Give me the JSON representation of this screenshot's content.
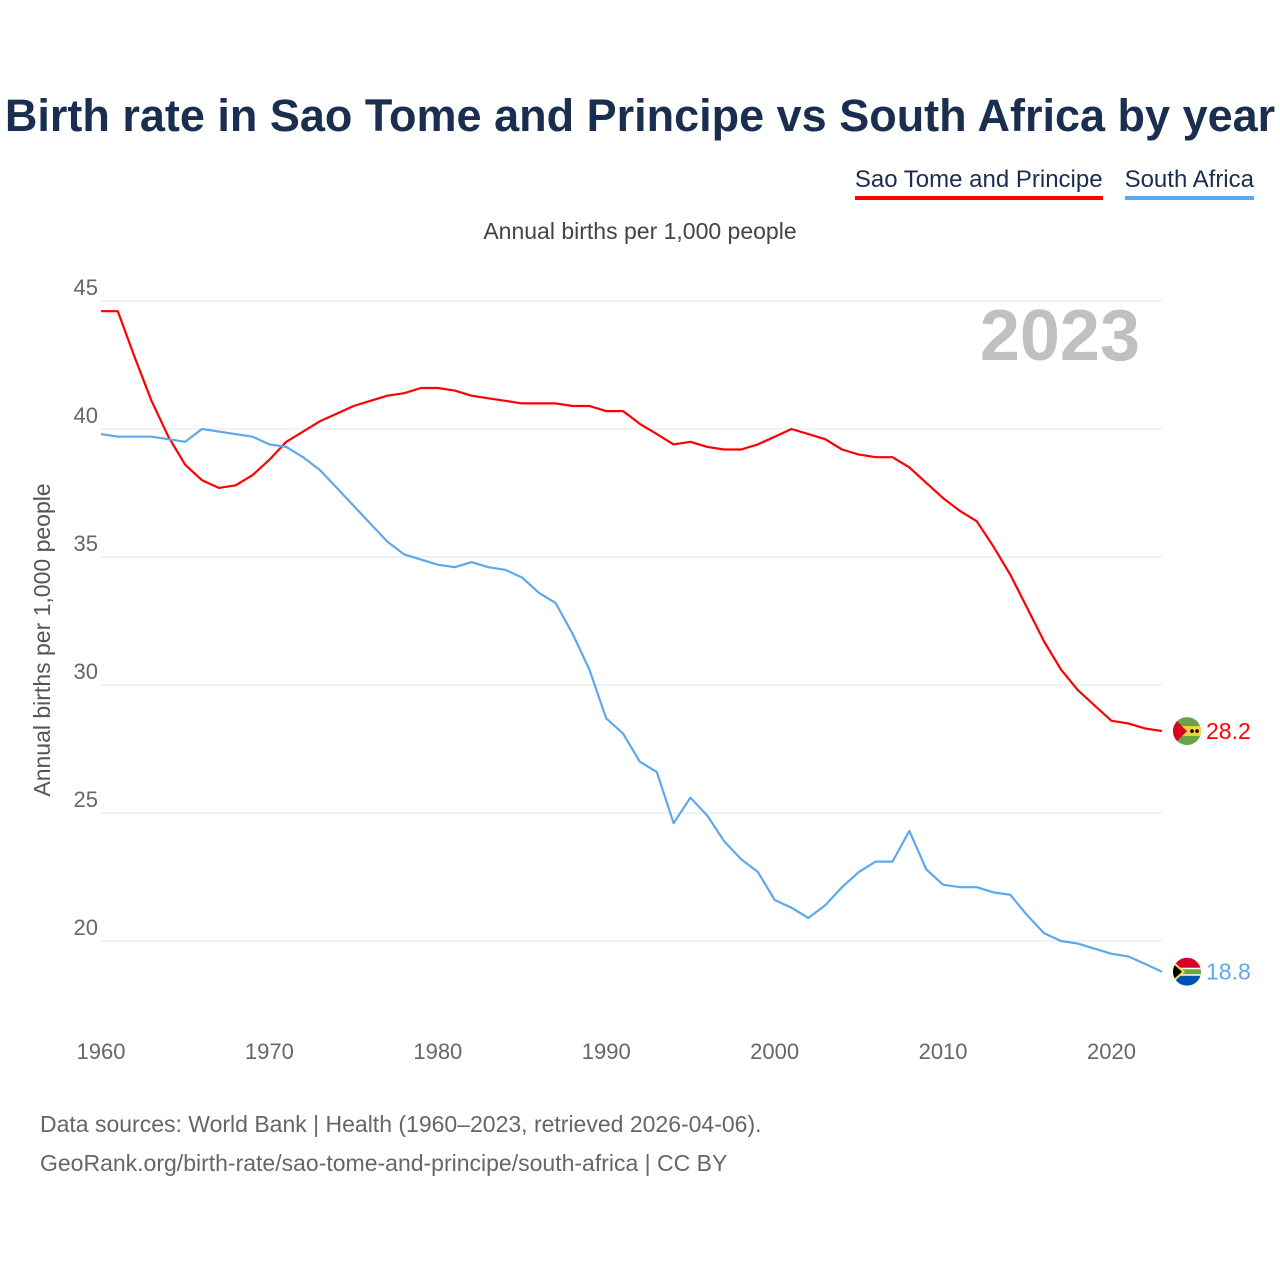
{
  "chart_data": {
    "type": "line",
    "title": "Birth rate in Sao Tome and Principe vs South Africa by year",
    "subtitle": "Annual births per 1,000 people",
    "ylabel": "Annual births per 1,000 people",
    "xlabel": "",
    "year_badge": "2023",
    "ylim": [
      20,
      45
    ],
    "xlim": [
      1960,
      2023
    ],
    "grid": true,
    "legend_position": "top-right",
    "yticks": [
      "20",
      "25",
      "30",
      "35",
      "40",
      "45"
    ],
    "xticks": [
      "1960",
      "1970",
      "1980",
      "1990",
      "2000",
      "2010",
      "2020"
    ],
    "x_start": 1960,
    "series": [
      {
        "name": "Sao Tome and Principe",
        "color": "#ff0000",
        "end_label": "28.2",
        "values": [
          44.6,
          44.6,
          42.8,
          41.1,
          39.7,
          38.6,
          38.0,
          37.7,
          37.8,
          38.2,
          38.8,
          39.5,
          39.9,
          40.3,
          40.6,
          40.9,
          41.1,
          41.3,
          41.4,
          41.6,
          41.6,
          41.5,
          41.3,
          41.2,
          41.1,
          41.0,
          41.0,
          41.0,
          40.9,
          40.9,
          40.7,
          40.7,
          40.2,
          39.8,
          39.4,
          39.5,
          39.3,
          39.2,
          39.2,
          39.4,
          39.7,
          40.0,
          39.8,
          39.6,
          39.2,
          39.0,
          38.9,
          38.9,
          38.5,
          37.9,
          37.3,
          36.8,
          36.4,
          35.4,
          34.3,
          33.0,
          31.7,
          30.6,
          29.8,
          29.2,
          28.6,
          28.5,
          28.3,
          28.2
        ]
      },
      {
        "name": "South Africa",
        "color": "#5da8ee",
        "end_label": "18.8",
        "values": [
          39.8,
          39.7,
          39.7,
          39.7,
          39.6,
          39.5,
          40.0,
          39.9,
          39.8,
          39.7,
          39.4,
          39.3,
          38.9,
          38.4,
          37.7,
          37.0,
          36.3,
          35.6,
          35.1,
          34.9,
          34.7,
          34.6,
          34.8,
          34.6,
          34.5,
          34.2,
          33.6,
          33.2,
          32.0,
          30.6,
          28.7,
          28.1,
          27.0,
          26.6,
          24.6,
          25.6,
          24.9,
          23.9,
          23.2,
          22.7,
          21.6,
          21.3,
          20.9,
          21.4,
          22.1,
          22.7,
          23.1,
          23.1,
          24.3,
          22.8,
          22.2,
          22.1,
          22.1,
          21.9,
          21.8,
          21.0,
          20.3,
          20.0,
          19.9,
          19.7,
          19.5,
          19.4,
          19.1,
          18.8
        ]
      }
    ]
  },
  "footer": {
    "line1": "Data sources: World Bank | Health (1960–2023, retrieved 2026-04-06).",
    "line2": "GeoRank.org/birth-rate/sao-tome-and-principe/south-africa | CC BY"
  }
}
